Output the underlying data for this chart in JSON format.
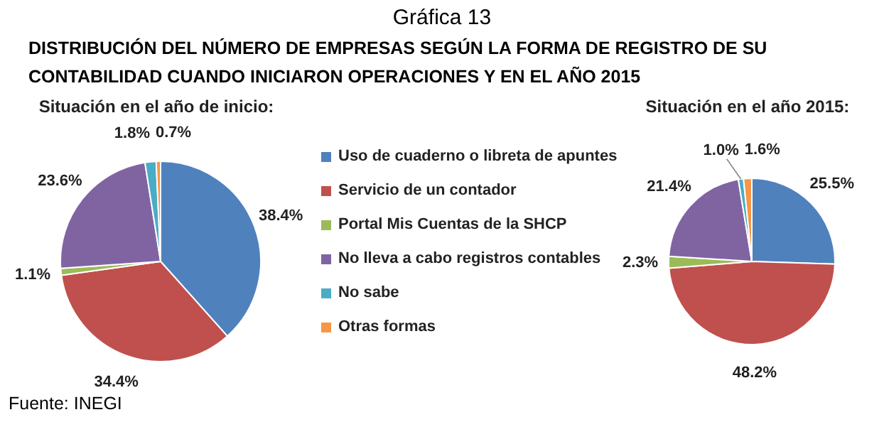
{
  "chart_data": {
    "type": "pie",
    "title": "Gráfica 13",
    "subtitle": "DISTRIBUCIÓN DEL NÚMERO DE EMPRESAS SEGÚN LA FORMA DE REGISTRO DE SU CONTABILIDAD CUANDO INICIARON OPERACIONES Y EN EL AÑO 2015",
    "annotations": [
      "Fuente: INEGI"
    ],
    "categories": [
      "Uso de cuaderno o libreta de apuntes",
      "Servicio de un contador",
      "Portal Mis Cuentas de la SHCP",
      "No lleva a cabo registros contables",
      "No sabe",
      "Otras formas"
    ],
    "colors": [
      "#4f81bd",
      "#c0504d",
      "#9bbb59",
      "#8064a2",
      "#4bacc6",
      "#f79646"
    ],
    "series": [
      {
        "name": "Situación en el año de inicio:",
        "values": [
          38.4,
          34.4,
          1.1,
          23.6,
          1.8,
          0.7
        ],
        "value_labels": [
          "38.4%",
          "34.4%",
          "1.1%",
          "23.6%",
          "1.8%",
          "0.7%"
        ]
      },
      {
        "name": "Situación en el año 2015:",
        "values": [
          25.5,
          48.2,
          2.3,
          21.4,
          1.0,
          1.6
        ],
        "value_labels": [
          "25.5%",
          "48.2%",
          "2.3%",
          "21.4%",
          "1.0%",
          "1.6%"
        ]
      }
    ],
    "legend": "right"
  }
}
